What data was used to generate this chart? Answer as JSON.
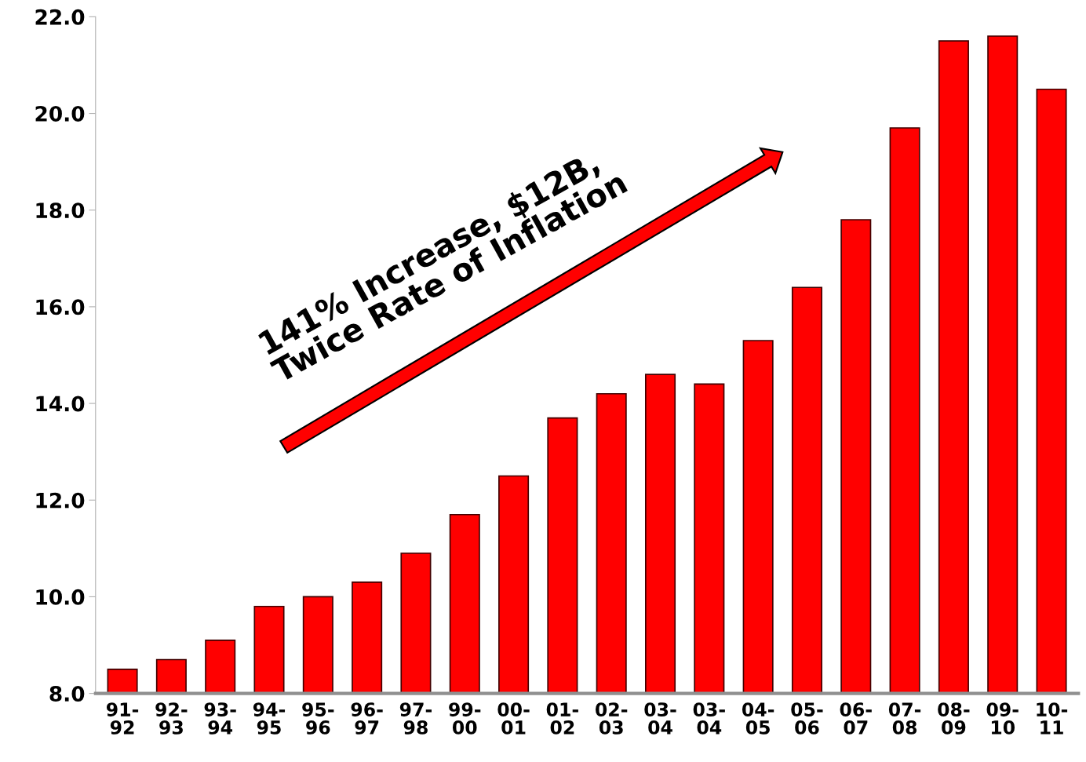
{
  "chart_data": {
    "type": "bar",
    "categories": [
      "91-\n92",
      "92-\n93",
      "93-\n94",
      "94-\n95",
      "95-\n96",
      "96-\n97",
      "97-\n98",
      "99-\n00",
      "00-\n01",
      "01-\n02",
      "02-\n03",
      "03-\n04",
      "03-\n04",
      "04-\n05",
      "05-\n06",
      "06-\n07",
      "07-\n08",
      "08-\n09",
      "09-\n10",
      "10-\n11"
    ],
    "values": [
      8.5,
      8.7,
      9.1,
      9.8,
      10.0,
      10.3,
      10.9,
      11.7,
      12.5,
      13.7,
      14.2,
      14.6,
      14.4,
      15.3,
      16.4,
      17.8,
      19.7,
      21.5,
      21.6,
      20.5
    ],
    "color": "#ff0000",
    "ylim": [
      8,
      22
    ],
    "yticks": [
      {
        "value": 8,
        "label": "8.0"
      },
      {
        "value": 10,
        "label": "10.0"
      },
      {
        "value": 12,
        "label": "12.0"
      },
      {
        "value": 14,
        "label": "14.0"
      },
      {
        "value": 16,
        "label": "16.0"
      },
      {
        "value": 18,
        "label": "18.0"
      },
      {
        "value": 20,
        "label": "20.0"
      },
      {
        "value": 22,
        "label": "22.0"
      }
    ],
    "grid": false,
    "annotations": [
      "141% Increase, $12B,\nTwice Rate of Inflation"
    ]
  }
}
